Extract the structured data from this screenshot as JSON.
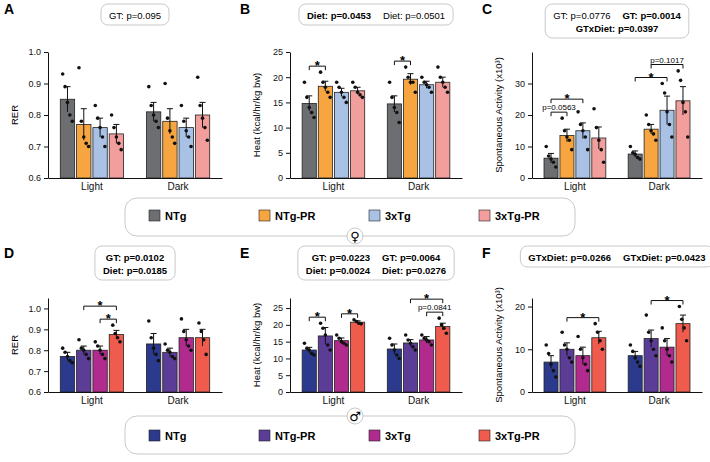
{
  "chart_data": [
    {
      "type": "bar",
      "title": "A",
      "y_label": "RER",
      "categories": [
        "Light",
        "Dark"
      ],
      "ylim": [
        0.6,
        1.0
      ],
      "yticks": [
        0.6,
        0.7,
        0.8,
        0.9,
        {
          "value": 1,
          "label": "1.0"
        }
      ],
      "series": [
        {
          "name": "NTg",
          "color": "#6d6e71",
          "values": [
            0.85,
            0.81
          ],
          "errors": [
            0.04,
            0.03
          ],
          "points": [
            [
              0.93,
              0.89,
              0.84,
              0.8,
              0.78
            ],
            [
              0.89,
              0.83,
              0.8,
              0.78,
              0.76
            ]
          ]
        },
        {
          "name": "NTg-PR",
          "color": "#f7a540",
          "values": [
            0.77,
            0.78
          ],
          "errors": [
            0.05,
            0.04
          ],
          "points": [
            [
              0.95,
              0.78,
              0.73,
              0.71,
              0.7
            ],
            [
              0.9,
              0.79,
              0.75,
              0.73,
              0.71
            ]
          ]
        },
        {
          "name": "3xTg",
          "color": "#a9c1e5",
          "values": [
            0.76,
            0.76
          ],
          "errors": [
            0.03,
            0.03
          ],
          "points": [
            [
              0.83,
              0.79,
              0.76,
              0.73,
              0.7
            ],
            [
              0.83,
              0.78,
              0.75,
              0.73,
              0.7
            ]
          ]
        },
        {
          "name": "3xTg-PR",
          "color": "#f29e9c",
          "values": [
            0.74,
            0.8
          ],
          "errors": [
            0.03,
            0.04
          ],
          "points": [
            [
              0.8,
              0.76,
              0.73,
              0.71,
              0.69
            ],
            [
              0.92,
              0.83,
              0.79,
              0.76,
              0.72
            ]
          ]
        }
      ],
      "stats": [
        [
          {
            "text": "GT: p=0.095",
            "significant": false
          }
        ]
      ],
      "brackets": []
    },
    {
      "type": "bar",
      "title": "B",
      "y_label": "Heat (kcal/hr/kg bw)",
      "categories": [
        "Light",
        "Dark"
      ],
      "ylim": [
        0,
        25
      ],
      "yticks": [
        0,
        5,
        10,
        15,
        20,
        25
      ],
      "series": [
        {
          "name": "NTg",
          "color": "#6d6e71",
          "values": [
            14.8,
            14.7
          ],
          "errors": [
            1.5,
            1.6
          ],
          "points": [
            [
              19,
              16,
              14,
              13,
              12
            ],
            [
              19,
              16,
              14,
              13,
              11
            ]
          ]
        },
        {
          "name": "NTg-PR",
          "color": "#f7a540",
          "values": [
            18.2,
            19.6
          ],
          "errors": [
            1.0,
            1.1
          ],
          "points": [
            [
              21,
              19,
              18,
              17,
              16
            ],
            [
              22,
              20,
              19,
              19,
              17
            ]
          ]
        },
        {
          "name": "3xTg",
          "color": "#a9c1e5",
          "values": [
            17.0,
            18.5
          ],
          "errors": [
            0.8,
            0.7
          ],
          "points": [
            [
              19,
              18,
              17,
              16,
              15
            ],
            [
              20,
              19,
              18.5,
              18,
              17
            ]
          ]
        },
        {
          "name": "3xTg-PR",
          "color": "#f29e9c",
          "values": [
            17.3,
            19.0
          ],
          "errors": [
            0.7,
            1.0
          ],
          "points": [
            [
              19,
              18,
              17,
              16.5,
              16
            ],
            [
              22,
              20,
              19,
              18,
              17
            ]
          ]
        }
      ],
      "stats": [
        [
          {
            "text": "Diet: p=0.0453",
            "significant": true
          },
          {
            "text": "Diet: p=0.0501",
            "significant": false
          }
        ]
      ],
      "brackets": [
        {
          "category": "Light",
          "series": [
            "NTg",
            "NTg-PR"
          ],
          "label": "*"
        },
        {
          "category": "Dark",
          "series": [
            "NTg",
            "NTg-PR"
          ],
          "label": "*"
        }
      ]
    },
    {
      "type": "bar",
      "title": "C",
      "y_label": "Spontaneous Activity (x10³)",
      "categories": [
        "Light",
        "Dark"
      ],
      "ylim": [
        0,
        40
      ],
      "yticks": [
        0,
        10,
        20,
        30
      ],
      "series": [
        {
          "name": "NTg",
          "color": "#6d6e71",
          "values": [
            6.3,
            7.6
          ],
          "errors": [
            1.5,
            1.0
          ],
          "points": [
            [
              10,
              7,
              6,
              5,
              3.5
            ],
            [
              10,
              8,
              7.5,
              6.5,
              6
            ]
          ]
        },
        {
          "name": "NTg-PR",
          "color": "#f7a540",
          "values": [
            13.5,
            15.5
          ],
          "errors": [
            2.0,
            1.5
          ],
          "points": [
            [
              19,
              15,
              13,
              12,
              9
            ],
            [
              20,
              17,
              15,
              14,
              12
            ]
          ]
        },
        {
          "name": "3xTg",
          "color": "#a9c1e5",
          "values": [
            15.0,
            21.5
          ],
          "errors": [
            2.5,
            4.5
          ],
          "points": [
            [
              21,
              17,
              15,
              13,
              9
            ],
            [
              30,
              27,
              21,
              17,
              13
            ]
          ]
        },
        {
          "name": "3xTg-PR",
          "color": "#f29e9c",
          "values": [
            12.7,
            24.5
          ],
          "errors": [
            3.5,
            4.5
          ],
          "points": [
            [
              22,
              16,
              12,
              9,
              5
            ],
            [
              34,
              31,
              24,
              21,
              13
            ]
          ]
        }
      ],
      "stats": [
        [
          {
            "text": "GT: p=0.0776",
            "significant": false
          },
          {
            "text": "GT: p=0.0014",
            "significant": true
          }
        ],
        [
          {
            "text": "GTxDiet: p=0.0397",
            "significant": true
          }
        ]
      ],
      "brackets": [
        {
          "category": "Light",
          "series": [
            "NTg",
            "NTg-PR"
          ],
          "label": "p=0.0563"
        },
        {
          "category": "Light",
          "series": [
            "NTg",
            "3xTg"
          ],
          "label": "*"
        },
        {
          "category": "Dark",
          "series": [
            "NTg",
            "3xTg"
          ],
          "label": "*"
        },
        {
          "category": "Dark",
          "series": [
            "NTg-PR",
            "3xTg-PR"
          ],
          "label": "p=0.1017"
        }
      ]
    },
    {
      "type": "bar",
      "title": "D",
      "y_label": "RER",
      "categories": [
        "Light",
        "Dark"
      ],
      "ylim": [
        0.6,
        1.05
      ],
      "yticks": [
        0.6,
        0.7,
        0.8,
        0.9,
        {
          "value": 1,
          "label": "1.0"
        }
      ],
      "series": [
        {
          "name": "NTg",
          "color": "#2b3a8c",
          "values": [
            0.77,
            0.83
          ],
          "errors": [
            0.02,
            0.05
          ],
          "points": [
            [
              0.81,
              0.79,
              0.77,
              0.75,
              0.74
            ],
            [
              0.94,
              0.86,
              0.81,
              0.78,
              0.75
            ]
          ]
        },
        {
          "name": "NTg-PR",
          "color": "#5b3d98",
          "values": [
            0.8,
            0.79
          ],
          "errors": [
            0.02,
            0.02
          ],
          "points": [
            [
              0.85,
              0.81,
              0.8,
              0.78,
              0.76
            ],
            [
              0.83,
              0.8,
              0.79,
              0.77,
              0.76
            ]
          ]
        },
        {
          "name": "3xTg",
          "color": "#b12b8e",
          "values": [
            0.8,
            0.86
          ],
          "errors": [
            0.02,
            0.04
          ],
          "points": [
            [
              0.84,
              0.82,
              0.8,
              0.78,
              0.76
            ],
            [
              0.95,
              0.89,
              0.85,
              0.82,
              0.8
            ]
          ]
        },
        {
          "name": "3xTg-PR",
          "color": "#ef5b4c",
          "values": [
            0.875,
            0.86
          ],
          "errors": [
            0.02,
            0.04
          ],
          "points": [
            [
              0.92,
              0.88,
              0.86,
              0.84
            ],
            [
              0.93,
              0.89,
              0.85,
              0.78
            ]
          ]
        }
      ],
      "stats": [
        [
          {
            "text": "GT: p=0.0102",
            "significant": true
          }
        ],
        [
          {
            "text": "Diet: p=0.0185",
            "significant": true
          }
        ]
      ],
      "brackets": [
        {
          "category": "Light",
          "series": [
            "3xTg",
            "3xTg-PR"
          ],
          "label": "*"
        },
        {
          "category": "Light",
          "series": [
            "NTg-PR",
            "3xTg-PR"
          ],
          "label": "*"
        }
      ]
    },
    {
      "type": "bar",
      "title": "E",
      "y_label": "Heat (kcal/hr/kg bw)",
      "categories": [
        "Light",
        "Dark"
      ],
      "ylim": [
        0,
        28
      ],
      "yticks": [
        0,
        5,
        10,
        15,
        20,
        25
      ],
      "series": [
        {
          "name": "NTg",
          "color": "#2b3a8c",
          "values": [
            12.5,
            12.8
          ],
          "errors": [
            0.8,
            1.5
          ],
          "points": [
            [
              14.5,
              13,
              12.5,
              11.5,
              11
            ],
            [
              16,
              14,
              12.5,
              11,
              10
            ]
          ]
        },
        {
          "name": "NTg-PR",
          "color": "#5b3d98",
          "values": [
            16.7,
            14.6
          ],
          "errors": [
            2.5,
            1.0
          ],
          "points": [
            [
              20.5,
              19,
              17,
              14,
              12.5
            ],
            [
              17,
              15.5,
              14.5,
              13.5,
              12.5
            ]
          ]
        },
        {
          "name": "3xTg",
          "color": "#b12b8e",
          "values": [
            15.3,
            15.5
          ],
          "errors": [
            0.8,
            1.0
          ],
          "points": [
            [
              17,
              16,
              15,
              14.5,
              14
            ],
            [
              17,
              16,
              15.5,
              15,
              14
            ]
          ]
        },
        {
          "name": "3xTg-PR",
          "color": "#ef5b4c",
          "values": [
            20.8,
            19.5
          ],
          "errors": [
            0.4,
            1.0
          ],
          "points": [
            [
              21.5,
              21,
              20.5,
              20.3
            ],
            [
              22,
              20,
              19,
              17.5
            ]
          ]
        }
      ],
      "stats": [
        [
          {
            "text": "GT: p=0.0223",
            "significant": true
          },
          {
            "text": "GT: p=0.0064",
            "significant": true
          }
        ],
        [
          {
            "text": "Diet: p=0.0024",
            "significant": true
          },
          {
            "text": "Diet: p=0.0276",
            "significant": true
          }
        ]
      ],
      "brackets": [
        {
          "category": "Light",
          "series": [
            "NTg",
            "NTg-PR"
          ],
          "label": "*"
        },
        {
          "category": "Light",
          "series": [
            "3xTg",
            "3xTg-PR"
          ],
          "label": "*"
        },
        {
          "category": "Dark",
          "series": [
            "3xTg",
            "3xTg-PR"
          ],
          "label": "p=0.0841"
        },
        {
          "category": "Dark",
          "series": [
            "NTg-PR",
            "3xTg-PR"
          ],
          "label": "*"
        }
      ]
    },
    {
      "type": "bar",
      "title": "F",
      "y_label": "Spontaneous Activity (x10³)",
      "categories": [
        "Light",
        "Dark"
      ],
      "ylim": [
        0,
        22
      ],
      "yticks": [
        0,
        10,
        20
      ],
      "series": [
        {
          "name": "NTg",
          "color": "#2b3a8c",
          "values": [
            7.0,
            8.5
          ],
          "errors": [
            1.5,
            1.0
          ],
          "points": [
            [
              11,
              9,
              6.5,
              5,
              3.5
            ],
            [
              11,
              9.5,
              8,
              7,
              6
            ]
          ]
        },
        {
          "name": "NTg-PR",
          "color": "#5b3d98",
          "values": [
            10.0,
            12.5
          ],
          "errors": [
            1.5,
            2.0
          ],
          "points": [
            [
              14,
              11,
              10,
              8,
              7
            ],
            [
              18,
              14,
              12,
              10,
              8.5
            ]
          ]
        },
        {
          "name": "3xTg",
          "color": "#b12b8e",
          "values": [
            8.5,
            10.5
          ],
          "errors": [
            2.0,
            2.0
          ],
          "points": [
            [
              13,
              10,
              8,
              6.5,
              5
            ],
            [
              15,
              12,
              10,
              8.5,
              7
            ]
          ]
        },
        {
          "name": "3xTg-PR",
          "color": "#ef5b4c",
          "values": [
            12.7,
            16.0
          ],
          "errors": [
            1.5,
            2.0
          ],
          "points": [
            [
              16,
              14,
              12,
              10
            ],
            [
              20,
              17,
              15,
              12
            ]
          ]
        }
      ],
      "stats": [
        [
          {
            "text": "GTxDiet: p=0.0266",
            "significant": true
          },
          {
            "text": "GTxDiet: p=0.0423",
            "significant": true
          }
        ]
      ],
      "brackets": [
        {
          "category": "Light",
          "series": [
            "NTg-PR",
            "3xTg-PR"
          ],
          "label": "*"
        },
        {
          "category": "Dark",
          "series": [
            "NTg-PR",
            "3xTg-PR"
          ],
          "label": "*"
        }
      ]
    }
  ],
  "legends": [
    {
      "symbol": "♀",
      "from_chart": "A"
    },
    {
      "symbol": "♂",
      "from_chart": "D"
    }
  ]
}
